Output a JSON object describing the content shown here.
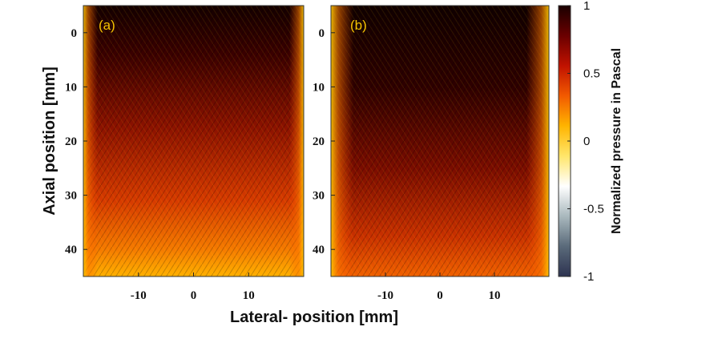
{
  "chart_data": [
    {
      "type": "heatmap",
      "panel_label": "(a)",
      "xlabel": "Lateral- position [mm]",
      "ylabel": "Axial position [mm]",
      "xlim": [
        -20,
        20
      ],
      "ylim": [
        -5,
        45
      ],
      "x_ticks": [
        -10,
        0,
        10
      ],
      "y_ticks": [
        0,
        10,
        20,
        30,
        40
      ],
      "y_reversed": true,
      "z_range": [
        -1,
        1
      ]
    },
    {
      "type": "heatmap",
      "panel_label": "(b)",
      "xlabel": "Lateral- position [mm]",
      "ylabel": "Axial position [mm]",
      "xlim": [
        -20,
        20
      ],
      "ylim": [
        -5,
        45
      ],
      "x_ticks": [
        -10,
        0,
        10
      ],
      "y_ticks": [
        0,
        10,
        20,
        30,
        40
      ],
      "y_reversed": true,
      "z_range": [
        -1,
        1
      ]
    }
  ],
  "figure": {
    "xlabel": "Lateral- position [mm]",
    "ylabel": "Axial position [mm]"
  },
  "colorbar": {
    "label": "Normalized pressure in Pascal",
    "ticks": [
      {
        "value": 1,
        "label": "1"
      },
      {
        "value": 0.5,
        "label": "0.5"
      },
      {
        "value": 0,
        "label": "0"
      },
      {
        "value": -0.5,
        "label": "-0.5"
      },
      {
        "value": -1,
        "label": "-1"
      }
    ],
    "colors": [
      "#2d3350",
      "#5a6a7a",
      "#a9b8bd",
      "#ffffff",
      "#ffe66b",
      "#ffb400",
      "#f25a00",
      "#c01200",
      "#6a0000",
      "#1a0000"
    ]
  }
}
